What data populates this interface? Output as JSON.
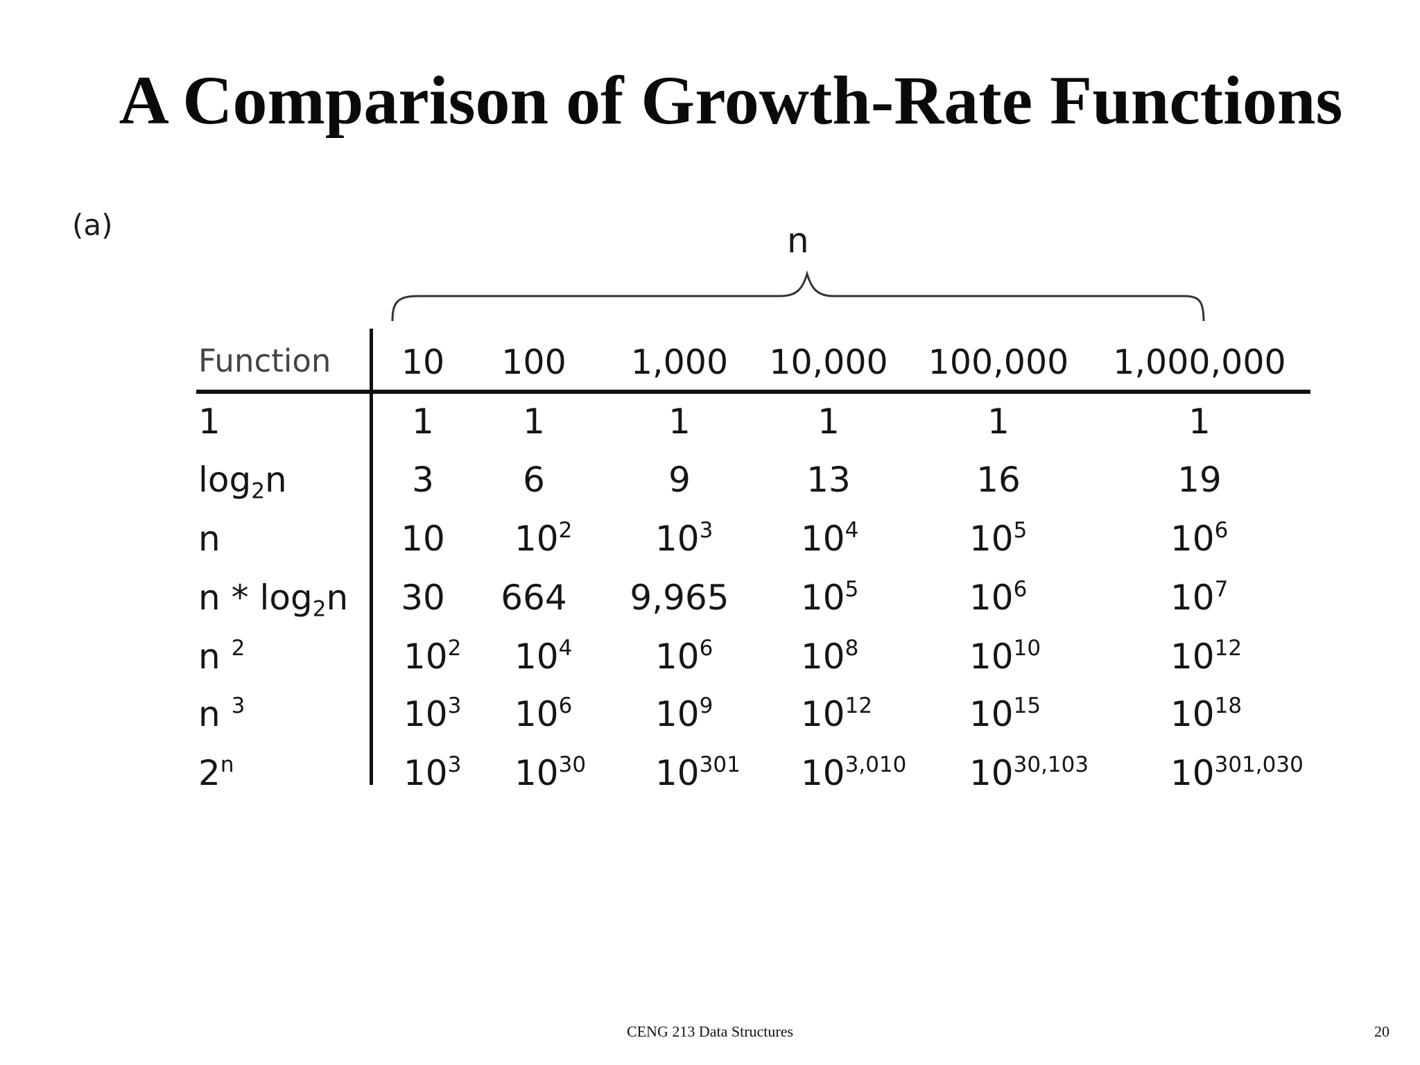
{
  "slide": {
    "title": "A Comparison of Growth-Rate Functions",
    "panel_label": "(a)",
    "n_label": "n",
    "footer": "CENG 213 Data Structures",
    "page_number": "20"
  },
  "table": {
    "function_header": "Function",
    "columns": [
      "10",
      "100",
      "1,000",
      "10,000",
      "100,000",
      "1,000,000"
    ],
    "rows": [
      {
        "label": {
          "main": "1"
        },
        "cells": [
          {
            "base": "1"
          },
          {
            "base": "1"
          },
          {
            "base": "1"
          },
          {
            "base": "1"
          },
          {
            "base": "1"
          },
          {
            "base": "1"
          }
        ]
      },
      {
        "label": {
          "main": "log",
          "sub": "2",
          "tail": "n"
        },
        "cells": [
          {
            "base": "3"
          },
          {
            "base": "6"
          },
          {
            "base": "9"
          },
          {
            "base": "13"
          },
          {
            "base": "16"
          },
          {
            "base": "19"
          }
        ]
      },
      {
        "label": {
          "main": "n"
        },
        "cells": [
          {
            "base": "10"
          },
          {
            "base": "10",
            "exp": "2"
          },
          {
            "base": "10",
            "exp": "3"
          },
          {
            "base": "10",
            "exp": "4"
          },
          {
            "base": "10",
            "exp": "5"
          },
          {
            "base": "10",
            "exp": "6"
          }
        ]
      },
      {
        "label": {
          "main": "n * log",
          "sub": "2",
          "tail": "n"
        },
        "cells": [
          {
            "base": "30"
          },
          {
            "base": "664"
          },
          {
            "base": "9,965"
          },
          {
            "base": "10",
            "exp": "5"
          },
          {
            "base": "10",
            "exp": "6"
          },
          {
            "base": "10",
            "exp": "7"
          }
        ]
      },
      {
        "label": {
          "main": "n ",
          "sup": "2"
        },
        "cells": [
          {
            "base": "10",
            "exp": "2"
          },
          {
            "base": "10",
            "exp": "4"
          },
          {
            "base": "10",
            "exp": "6"
          },
          {
            "base": "10",
            "exp": "8"
          },
          {
            "base": "10",
            "exp": "10"
          },
          {
            "base": "10",
            "exp": "12"
          }
        ]
      },
      {
        "label": {
          "main": "n ",
          "sup": "3"
        },
        "cells": [
          {
            "base": "10",
            "exp": "3"
          },
          {
            "base": "10",
            "exp": "6"
          },
          {
            "base": "10",
            "exp": "9"
          },
          {
            "base": "10",
            "exp": "12"
          },
          {
            "base": "10",
            "exp": "15"
          },
          {
            "base": "10",
            "exp": "18"
          }
        ]
      },
      {
        "label": {
          "main": "2",
          "sup": "n"
        },
        "cells": [
          {
            "base": "10",
            "exp": "3"
          },
          {
            "base": "10",
            "exp": "30"
          },
          {
            "base": "10",
            "exp": "301"
          },
          {
            "base": "10",
            "exp": "3,010"
          },
          {
            "base": "10",
            "exp": "30,103"
          },
          {
            "base": "10",
            "exp": "301,030"
          }
        ]
      }
    ]
  }
}
